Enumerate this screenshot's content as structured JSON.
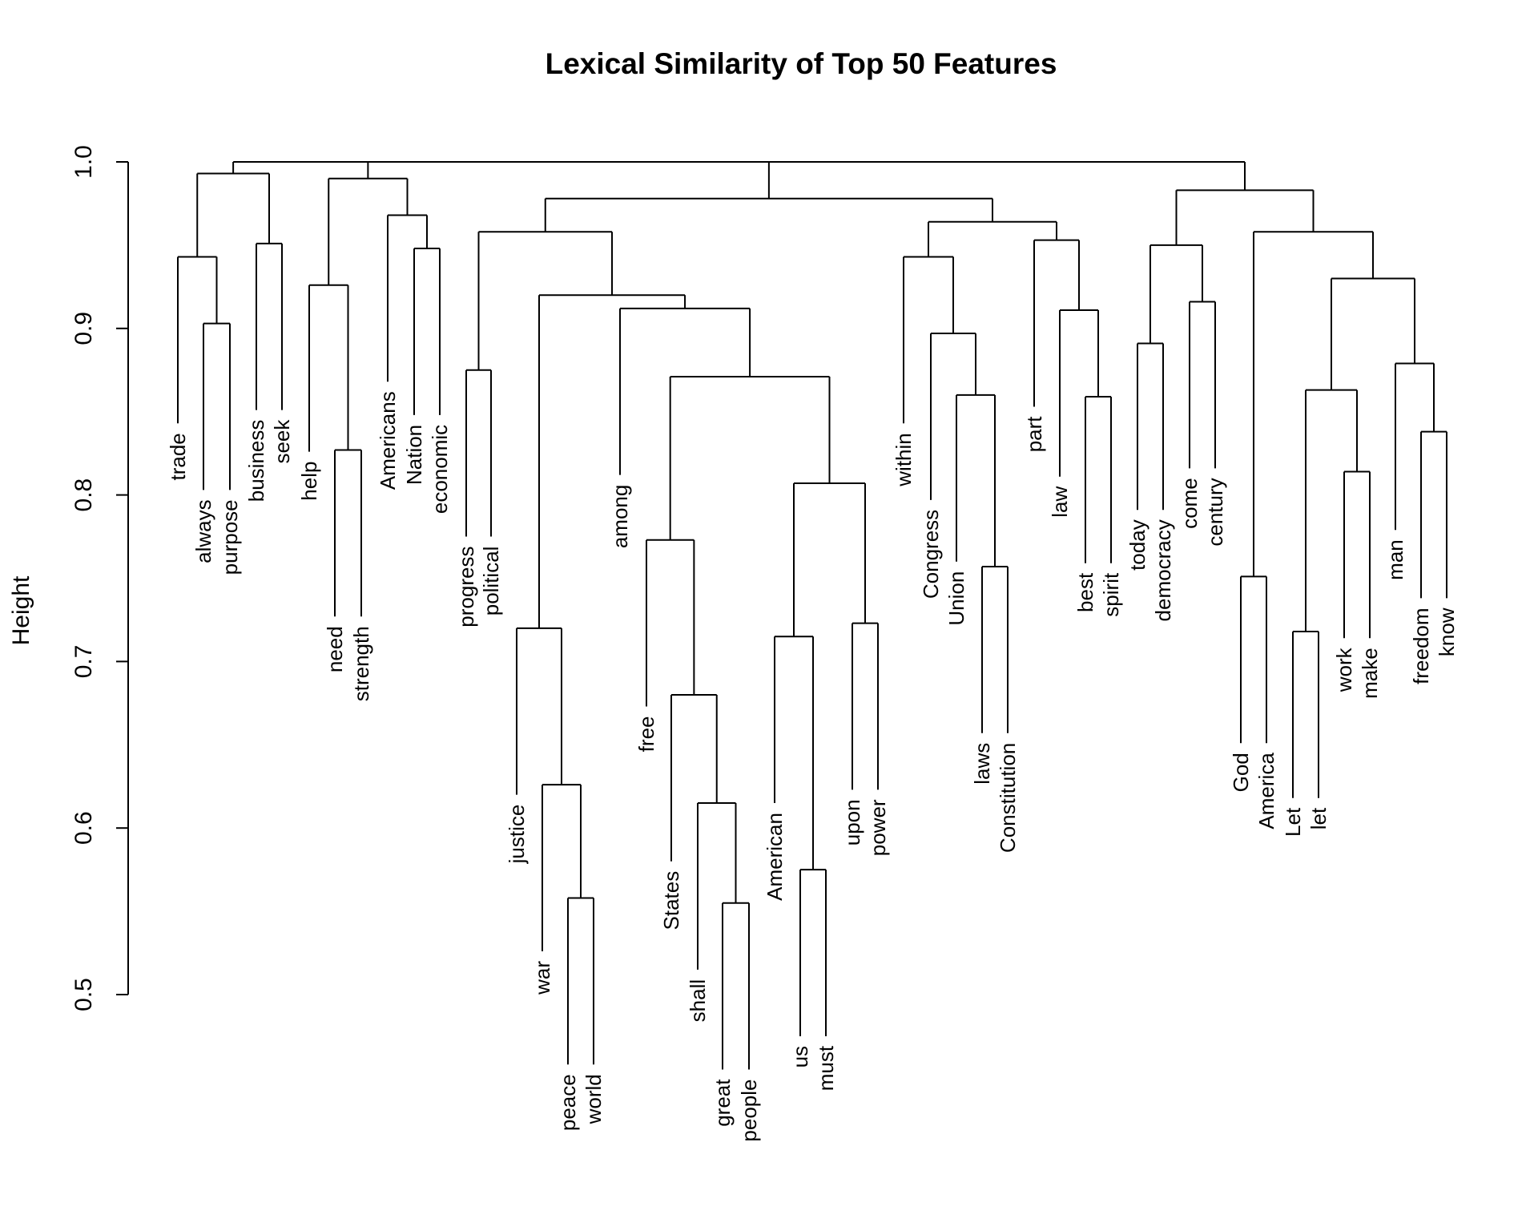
{
  "chart_data": {
    "type": "dendrogram",
    "title": "Lexical Similarity of Top 50 Features",
    "ylabel": "Height",
    "ylim": [
      0.5,
      1.0
    ],
    "y_ticks": [
      "0.5",
      "0.6",
      "0.7",
      "0.8",
      "0.9",
      "1.0"
    ],
    "y_tick_values": [
      0.5,
      0.6,
      0.7,
      0.8,
      0.9,
      1.0
    ],
    "leaves": [
      "trade",
      "always",
      "purpose",
      "business",
      "seek",
      "help",
      "need",
      "strength",
      "Americans",
      "Nation",
      "economic",
      "progress",
      "political",
      "justice",
      "war",
      "peace",
      "world",
      "among",
      "free",
      "States",
      "shall",
      "great",
      "people",
      "American",
      "us",
      "must",
      "upon",
      "power",
      "within",
      "Congress",
      "Union",
      "laws",
      "Constitution",
      "part",
      "law",
      "best",
      "spirit",
      "today",
      "democracy",
      "come",
      "century",
      "God",
      "America",
      "Let",
      "let",
      "work",
      "make",
      "man",
      "freedom",
      "know"
    ],
    "merges": [
      {
        "id": "n_always_purpose",
        "children": [
          "always",
          "purpose"
        ],
        "height": 0.903
      },
      {
        "id": "n_trade_grp",
        "children": [
          "trade",
          "n_always_purpose"
        ],
        "height": 0.943
      },
      {
        "id": "n_business_seek",
        "children": [
          "business",
          "seek"
        ],
        "height": 0.951
      },
      {
        "id": "n_c1",
        "children": [
          "n_trade_grp",
          "n_business_seek"
        ],
        "height": 0.993
      },
      {
        "id": "n_need_strength",
        "children": [
          "need",
          "strength"
        ],
        "height": 0.827
      },
      {
        "id": "n_help_grp",
        "children": [
          "help",
          "n_need_strength"
        ],
        "height": 0.926
      },
      {
        "id": "n_nation_economic",
        "children": [
          "Nation",
          "economic"
        ],
        "height": 0.948
      },
      {
        "id": "n_americans_grp",
        "children": [
          "Americans",
          "n_nation_economic"
        ],
        "height": 0.968
      },
      {
        "id": "n_c2",
        "children": [
          "n_help_grp",
          "n_americans_grp"
        ],
        "height": 0.99
      },
      {
        "id": "n_c1c2",
        "children": [
          "n_c1",
          "n_c2"
        ],
        "height": 1.0
      },
      {
        "id": "n_progress_political",
        "children": [
          "progress",
          "political"
        ],
        "height": 0.875
      },
      {
        "id": "n_peace_world",
        "children": [
          "peace",
          "world"
        ],
        "height": 0.558
      },
      {
        "id": "n_war_grp",
        "children": [
          "war",
          "n_peace_world"
        ],
        "height": 0.626
      },
      {
        "id": "n_justice_grp",
        "children": [
          "justice",
          "n_war_grp"
        ],
        "height": 0.72
      },
      {
        "id": "n_great_people",
        "children": [
          "great",
          "people"
        ],
        "height": 0.555
      },
      {
        "id": "n_shall_grp",
        "children": [
          "shall",
          "n_great_people"
        ],
        "height": 0.615
      },
      {
        "id": "n_states_grp",
        "children": [
          "States",
          "n_shall_grp"
        ],
        "height": 0.68
      },
      {
        "id": "n_free_grp",
        "children": [
          "free",
          "n_states_grp"
        ],
        "height": 0.773
      },
      {
        "id": "n_us_must",
        "children": [
          "us",
          "must"
        ],
        "height": 0.575
      },
      {
        "id": "n_american_grp",
        "children": [
          "American",
          "n_us_must"
        ],
        "height": 0.715
      },
      {
        "id": "n_upon_power",
        "children": [
          "upon",
          "power"
        ],
        "height": 0.723
      },
      {
        "id": "n_american_upon",
        "children": [
          "n_american_grp",
          "n_upon_power"
        ],
        "height": 0.807
      },
      {
        "id": "n_free_american",
        "children": [
          "n_free_grp",
          "n_american_upon"
        ],
        "height": 0.871
      },
      {
        "id": "n_among_grp",
        "children": [
          "among",
          "n_free_american"
        ],
        "height": 0.912
      },
      {
        "id": "n_justice_among",
        "children": [
          "n_justice_grp",
          "n_among_grp"
        ],
        "height": 0.92
      },
      {
        "id": "n_c3a",
        "children": [
          "n_progress_political",
          "n_justice_among"
        ],
        "height": 0.958
      },
      {
        "id": "n_laws_constitution",
        "children": [
          "laws",
          "Constitution"
        ],
        "height": 0.757
      },
      {
        "id": "n_union_grp",
        "children": [
          "Union",
          "n_laws_constitution"
        ],
        "height": 0.86
      },
      {
        "id": "n_congress_grp",
        "children": [
          "Congress",
          "n_union_grp"
        ],
        "height": 0.897
      },
      {
        "id": "n_within_grp",
        "children": [
          "within",
          "n_congress_grp"
        ],
        "height": 0.943
      },
      {
        "id": "n_best_spirit",
        "children": [
          "best",
          "spirit"
        ],
        "height": 0.859
      },
      {
        "id": "n_law_grp",
        "children": [
          "law",
          "n_best_spirit"
        ],
        "height": 0.911
      },
      {
        "id": "n_part_grp",
        "children": [
          "part",
          "n_law_grp"
        ],
        "height": 0.953
      },
      {
        "id": "n_c3b",
        "children": [
          "n_within_grp",
          "n_part_grp"
        ],
        "height": 0.964
      },
      {
        "id": "n_c3",
        "children": [
          "n_c3a",
          "n_c3b"
        ],
        "height": 0.978
      },
      {
        "id": "n_today_democracy",
        "children": [
          "today",
          "democracy"
        ],
        "height": 0.891
      },
      {
        "id": "n_come_century",
        "children": [
          "come",
          "century"
        ],
        "height": 0.916
      },
      {
        "id": "n_c4a",
        "children": [
          "n_today_democracy",
          "n_come_century"
        ],
        "height": 0.95
      },
      {
        "id": "n_god_america",
        "children": [
          "God",
          "America"
        ],
        "height": 0.751
      },
      {
        "id": "n_Let_let",
        "children": [
          "Let",
          "let"
        ],
        "height": 0.718
      },
      {
        "id": "n_work_make",
        "children": [
          "work",
          "make"
        ],
        "height": 0.814
      },
      {
        "id": "n_let_work",
        "children": [
          "n_Let_let",
          "n_work_make"
        ],
        "height": 0.863
      },
      {
        "id": "n_freedom_know",
        "children": [
          "freedom",
          "know"
        ],
        "height": 0.838
      },
      {
        "id": "n_man_grp",
        "children": [
          "man",
          "n_freedom_know"
        ],
        "height": 0.879
      },
      {
        "id": "n_let_man",
        "children": [
          "n_let_work",
          "n_man_grp"
        ],
        "height": 0.93
      },
      {
        "id": "n_c4b",
        "children": [
          "n_god_america",
          "n_let_man"
        ],
        "height": 0.958
      },
      {
        "id": "n_c4",
        "children": [
          "n_c4a",
          "n_c4b"
        ],
        "height": 0.983
      },
      {
        "id": "n_c3c4",
        "children": [
          "n_c3",
          "n_c4"
        ],
        "height": 1.0
      },
      {
        "id": "n_root",
        "children": [
          "n_c1c2",
          "n_c3c4"
        ],
        "height": 1.0
      }
    ]
  }
}
